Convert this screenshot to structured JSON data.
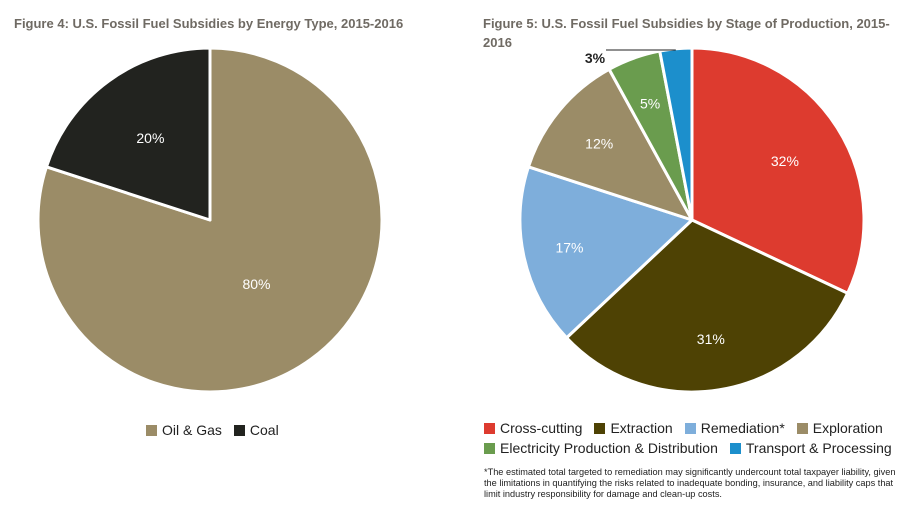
{
  "chart_data": [
    {
      "type": "pie",
      "title": "Figure 4: U.S. Fossil Fuel Subsidies by Energy Type, 2015-2016",
      "categories": [
        "Oil & Gas",
        "Coal"
      ],
      "values": [
        80,
        20
      ],
      "labels": [
        "80%",
        "20%"
      ],
      "colors": [
        "#9b8c67",
        "#22231f"
      ],
      "label_colors": [
        "#ffffff",
        "#ffffff"
      ],
      "legend_position": "bottom"
    },
    {
      "type": "pie",
      "title": "Figure 5: U.S. Fossil Fuel Subsidies by Stage of Production, 2015-2016",
      "categories": [
        "Cross-cutting",
        "Extraction",
        "Remediation*",
        "Exploration",
        "Electricity Production & Distribution",
        "Transport & Processing"
      ],
      "values": [
        32,
        31,
        17,
        12,
        5,
        3
      ],
      "labels": [
        "32%",
        "31%",
        "17%",
        "12%",
        "5%",
        "3%"
      ],
      "colors": [
        "#dd3b2f",
        "#4e4204",
        "#7eaedb",
        "#9b8c67",
        "#6a9c4e",
        "#1c8fcc"
      ],
      "label_colors": [
        "#ffffff",
        "#ffffff",
        "#ffffff",
        "#ffffff",
        "#ffffff",
        "#222222"
      ],
      "legend_position": "bottom",
      "footnote": "*The estimated total targeted to remediation may significantly undercount total taxpayer liability, given the limitations in quantifying the risks related to inadequate bonding, insurance, and liability caps that limit industry responsibility for damage and clean-up costs."
    }
  ]
}
